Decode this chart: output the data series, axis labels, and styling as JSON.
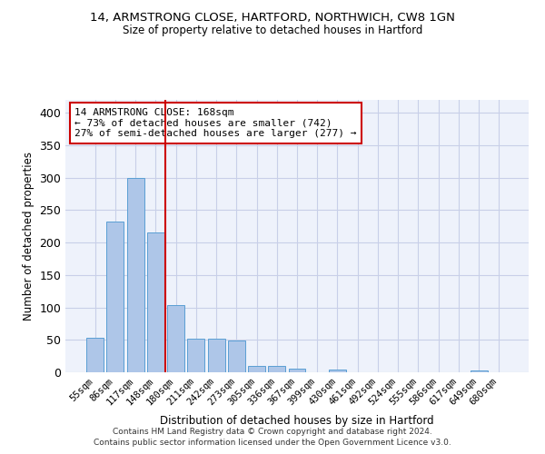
{
  "title1": "14, ARMSTRONG CLOSE, HARTFORD, NORTHWICH, CW8 1GN",
  "title2": "Size of property relative to detached houses in Hartford",
  "xlabel": "Distribution of detached houses by size in Hartford",
  "ylabel": "Number of detached properties",
  "categories": [
    "55sqm",
    "86sqm",
    "117sqm",
    "148sqm",
    "180sqm",
    "211sqm",
    "242sqm",
    "273sqm",
    "305sqm",
    "336sqm",
    "367sqm",
    "399sqm",
    "430sqm",
    "461sqm",
    "492sqm",
    "524sqm",
    "555sqm",
    "586sqm",
    "617sqm",
    "649sqm",
    "680sqm"
  ],
  "values": [
    53,
    232,
    300,
    215,
    103,
    52,
    52,
    49,
    10,
    10,
    6,
    0,
    4,
    0,
    0,
    0,
    0,
    0,
    0,
    3,
    0
  ],
  "bar_color": "#aec6e8",
  "bar_edge_color": "#5a9fd4",
  "vline_color": "#cc0000",
  "annotation_text": "14 ARMSTRONG CLOSE: 168sqm\n← 73% of detached houses are smaller (742)\n27% of semi-detached houses are larger (277) →",
  "annotation_box_color": "white",
  "annotation_box_edge_color": "#cc0000",
  "ylim": [
    0,
    420
  ],
  "yticks": [
    0,
    50,
    100,
    150,
    200,
    250,
    300,
    350,
    400
  ],
  "footer1": "Contains HM Land Registry data © Crown copyright and database right 2024.",
  "footer2": "Contains public sector information licensed under the Open Government Licence v3.0.",
  "bg_color": "#eef2fb",
  "grid_color": "#c8cfe8"
}
